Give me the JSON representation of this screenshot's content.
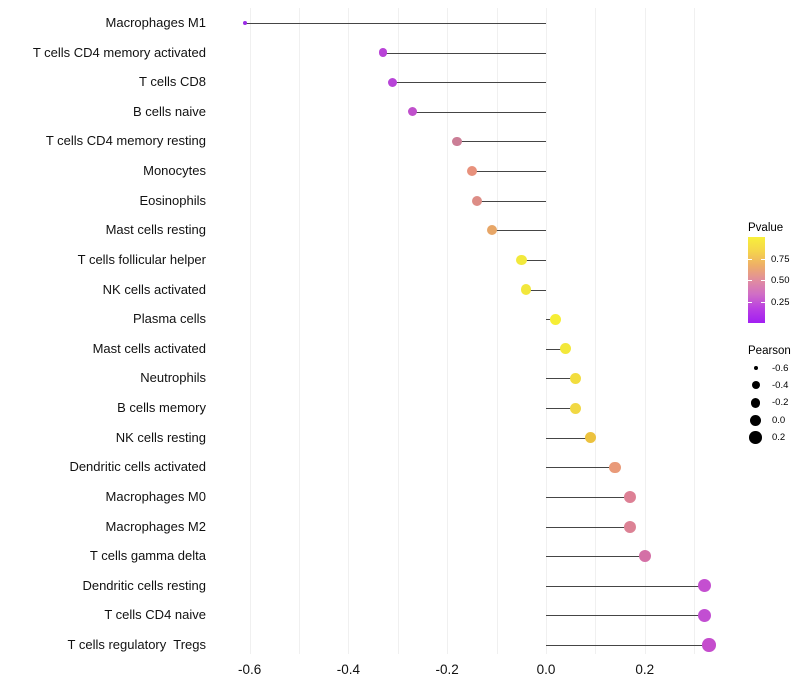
{
  "chart_data": {
    "type": "lollipop",
    "title": "",
    "xlabel": "",
    "ylabel": "",
    "orientation": "horizontal",
    "grid": "vertical light gridlines, white background, no axis lines",
    "legend_position": "right",
    "categories": [
      "Macrophages M1",
      "T cells CD4 memory activated",
      "T cells CD8",
      "B cells naive",
      "T cells CD4 memory resting",
      "Monocytes",
      "Eosinophils",
      "Mast cells resting",
      "T cells follicular helper",
      "NK cells activated",
      "Plasma cells",
      "Mast cells activated",
      "Neutrophils",
      "B cells memory",
      "NK cells resting",
      "Dendritic cells activated",
      "Macrophages M0",
      "Macrophages M2",
      "T cells gamma delta",
      "Dendritic cells resting",
      "T cells CD4 naive",
      "T cells regulatory  Tregs"
    ],
    "values": [
      -0.61,
      -0.33,
      -0.31,
      -0.27,
      -0.18,
      -0.15,
      -0.14,
      -0.11,
      -0.05,
      -0.04,
      0.02,
      0.04,
      0.06,
      0.06,
      0.09,
      0.14,
      0.17,
      0.17,
      0.2,
      0.32,
      0.32,
      0.33
    ],
    "dot_colors": [
      "#9b2de6",
      "#b943d7",
      "#b844d8",
      "#c050cc",
      "#cb7e96",
      "#e8917c",
      "#dd8d86",
      "#e7a667",
      "#f2e93c",
      "#f2e73c",
      "#f6ee35",
      "#f3e83a",
      "#f2dd3e",
      "#f1d843",
      "#ecc23e",
      "#e99a79",
      "#dd8095",
      "#dc8295",
      "#d470a6",
      "#c44fd0",
      "#c24ed2",
      "#c54dcd"
    ],
    "dot_diameters": [
      4,
      8.5,
      9,
      9,
      9.5,
      10,
      10,
      10,
      10.5,
      10.5,
      11,
      11,
      11,
      11,
      11,
      11.5,
      12,
      12,
      12.5,
      13,
      13,
      13.5
    ],
    "segment_color": "#454545",
    "x_ticks": [
      "-0.6",
      "-0.4",
      "-0.2",
      "0.0",
      "0.2"
    ],
    "x_tick_values": [
      -0.6,
      -0.4,
      -0.2,
      0.0,
      0.2
    ],
    "grid_x_values": [
      -0.6,
      -0.5,
      -0.4,
      -0.3,
      -0.2,
      -0.1,
      0.0,
      0.1,
      0.2,
      0.3
    ],
    "xlim": [
      -0.66,
      0.35
    ]
  },
  "legend": {
    "pvalue": {
      "title": "Pvalue",
      "ticks": [
        {
          "label": "0.75",
          "value": 0.75
        },
        {
          "label": "0.50",
          "value": 0.5
        },
        {
          "label": "0.25",
          "value": 0.25
        }
      ],
      "gradient_stops": [
        "#f8f03a",
        "#f5d44c",
        "#eeae68",
        "#e18d9e",
        "#d06ec6",
        "#b93ee3",
        "#a21ff2"
      ]
    },
    "pearson": {
      "title": "Pearson",
      "items": [
        {
          "label": "-0.6",
          "diameter": 4
        },
        {
          "label": "-0.4",
          "diameter": 8
        },
        {
          "label": "-0.2",
          "diameter": 9.5
        },
        {
          "label": "0.0",
          "diameter": 11
        },
        {
          "label": "0.2",
          "diameter": 12.5
        }
      ],
      "dot_color": "#000000"
    }
  }
}
